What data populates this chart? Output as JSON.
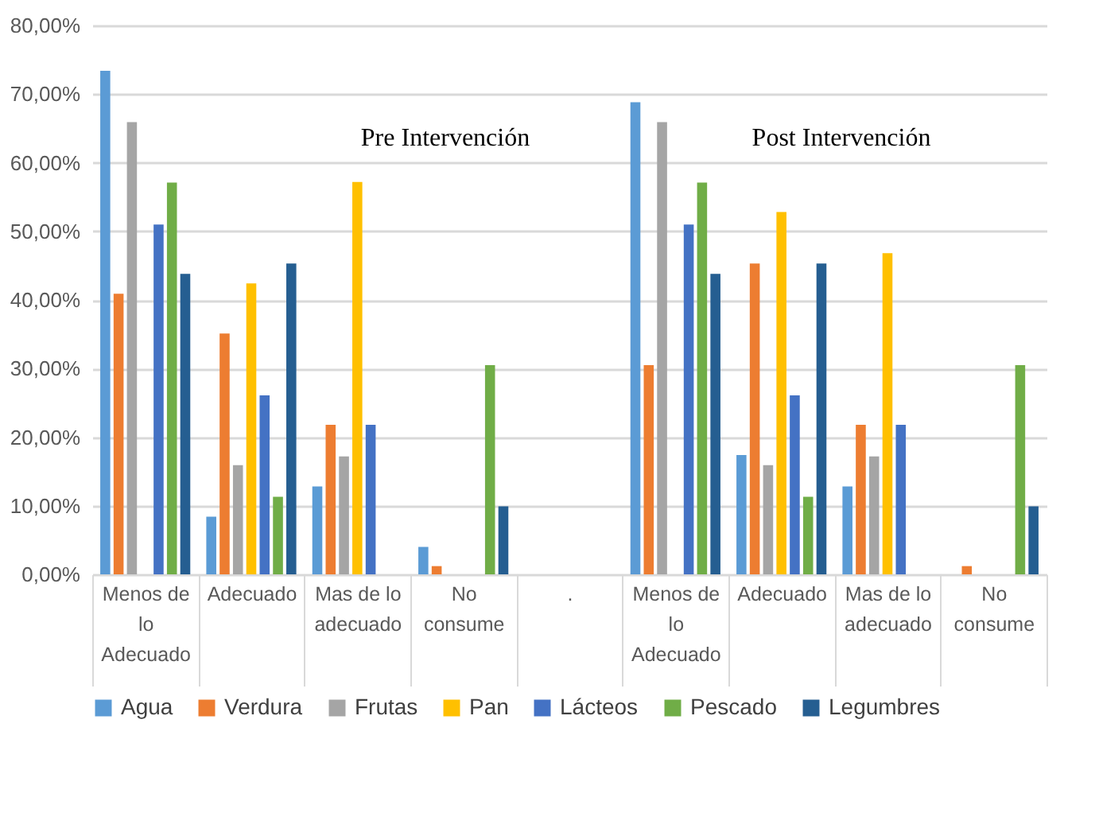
{
  "chart_data": {
    "type": "bar",
    "annotations": [
      "Pre Intervención",
      "Post  Intervención"
    ],
    "categories": [
      "Menos de lo Adecuado",
      "Adecuado",
      "Mas de lo adecuado",
      "No consume",
      ".",
      "Menos de lo Adecuado",
      "Adecuado",
      "Mas de lo adecuado",
      "No consume"
    ],
    "series": [
      {
        "name": "Agua",
        "color": "#5b9bd5",
        "values": [
          73.4,
          8.4,
          12.8,
          4.0,
          null,
          68.8,
          17.4,
          12.8,
          0
        ]
      },
      {
        "name": "Verdura",
        "color": "#ed7d31",
        "values": [
          40.9,
          35.1,
          21.8,
          1.2,
          null,
          30.5,
          45.3,
          21.8,
          1.2
        ]
      },
      {
        "name": "Frutas",
        "color": "#a5a5a5",
        "values": [
          65.9,
          15.9,
          17.2,
          0,
          null,
          65.9,
          15.9,
          17.2,
          0
        ]
      },
      {
        "name": "Pan",
        "color": "#ffc000",
        "values": [
          0,
          42.4,
          57.2,
          0,
          null,
          0,
          52.8,
          46.8,
          0
        ]
      },
      {
        "name": "Lácteos",
        "color": "#4472c4",
        "values": [
          51.0,
          26.1,
          21.8,
          0,
          null,
          51.0,
          26.1,
          21.8,
          0
        ]
      },
      {
        "name": "Pescado",
        "color": "#70ad47",
        "values": [
          57.1,
          11.3,
          0,
          30.5,
          null,
          57.1,
          11.3,
          0,
          30.5
        ]
      },
      {
        "name": "Legumbres",
        "color": "#255e91",
        "values": [
          43.8,
          45.3,
          0,
          9.9,
          null,
          43.8,
          45.3,
          0,
          9.9
        ]
      }
    ],
    "ylim": [
      0,
      80
    ],
    "yticks": [
      {
        "value": 0,
        "label": "0,00%"
      },
      {
        "value": 10,
        "label": "10,00%"
      },
      {
        "value": 20,
        "label": "20,00%"
      },
      {
        "value": 30,
        "label": "30,00%"
      },
      {
        "value": 40,
        "label": "40,00%"
      },
      {
        "value": 50,
        "label": "50,00%"
      },
      {
        "value": 60,
        "label": "60,00%"
      },
      {
        "value": 70,
        "label": "70,00%"
      },
      {
        "value": 80,
        "label": "80,00%"
      }
    ],
    "grid": "y",
    "legend": "bottom"
  }
}
